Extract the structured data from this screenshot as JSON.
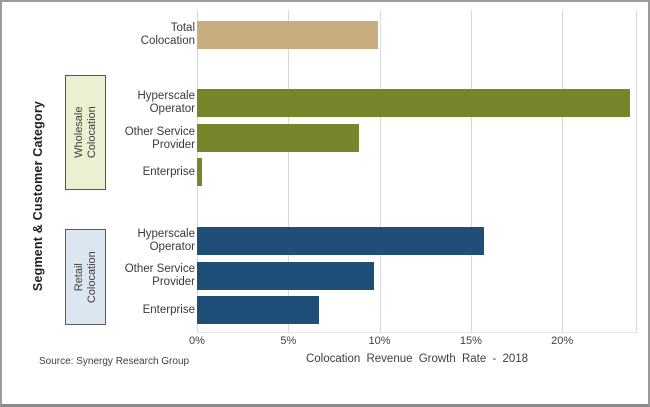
{
  "chart_data": {
    "type": "bar",
    "orientation": "horizontal",
    "title": "",
    "xlabel": "Colocation Revenue Growth Rate - 2018",
    "ylabel": "Segment & Customer Category",
    "xlim": [
      0,
      24.1
    ],
    "grid": "vertical-only",
    "legend": "none",
    "x_ticks": [
      {
        "value": 0,
        "label": "0%"
      },
      {
        "value": 5,
        "label": "5%"
      },
      {
        "value": 10,
        "label": "10%"
      },
      {
        "value": 15,
        "label": "15%"
      },
      {
        "value": 20,
        "label": "20%"
      }
    ],
    "bars": [
      {
        "group": "Total",
        "category": "Total Colocation",
        "display_label": "Total\nColocation",
        "value": 9.9,
        "color": "#C9AD7E"
      },
      {
        "group": "Wholesale Colocation",
        "category": "Hyperscale Operator",
        "display_label": "Hyperscale\nOperator",
        "value": 23.7,
        "color": "#78862B"
      },
      {
        "group": "Wholesale Colocation",
        "category": "Other Service Provider",
        "display_label": "Other Service\nProvider",
        "value": 8.9,
        "color": "#78862B"
      },
      {
        "group": "Wholesale Colocation",
        "category": "Enterprise",
        "display_label": "Enterprise",
        "value": 0.3,
        "color": "#78862B"
      },
      {
        "group": "Retail Colocation",
        "category": "Hyperscale Operator",
        "display_label": "Hyperscale\nOperator",
        "value": 15.7,
        "color": "#1F4E79"
      },
      {
        "group": "Retail Colocation",
        "category": "Other Service Provider",
        "display_label": "Other Service\nProvider",
        "value": 9.7,
        "color": "#1F4E79"
      },
      {
        "group": "Retail Colocation",
        "category": "Enterprise",
        "display_label": "Enterprise",
        "value": 6.7,
        "color": "#1F4E79"
      }
    ],
    "group_boxes": [
      {
        "label": "Wholesale\nColocation",
        "fill": "#EDEFD3",
        "border": "#55573F"
      },
      {
        "label": "Retail\nColocation",
        "fill": "#DCE6F1",
        "border": "#5A5A5A"
      }
    ],
    "colors": {
      "total_bar": "#C9AD7E",
      "wholesale_bar": "#78862B",
      "retail_bar": "#1F4E79",
      "gridline": "#D9D9D9"
    }
  },
  "source_note": "Source: Synergy Research Group"
}
